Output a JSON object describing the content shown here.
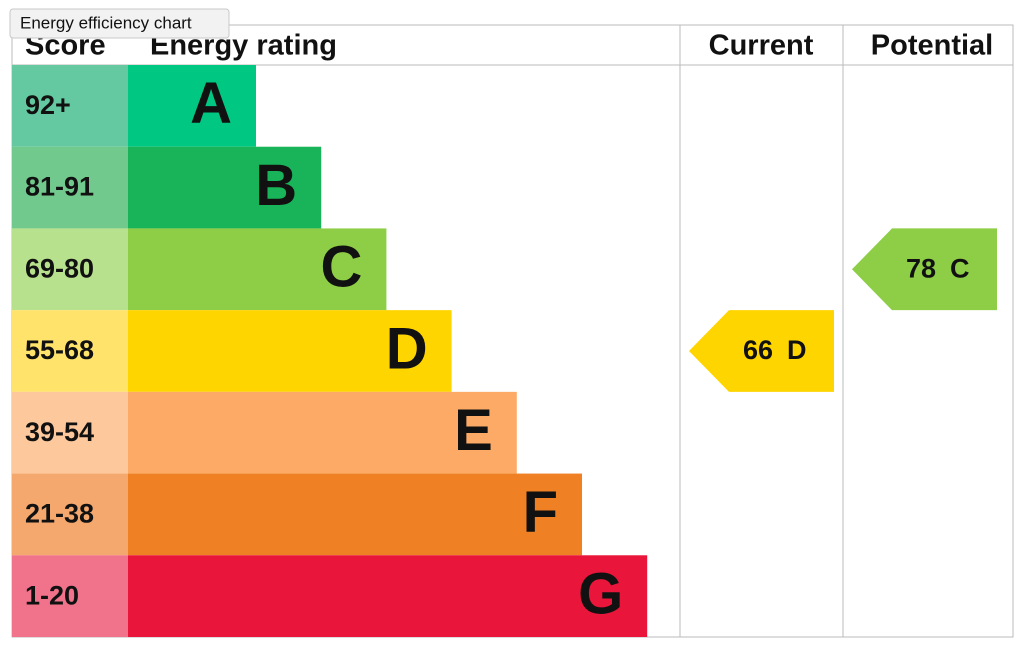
{
  "tooltip": "Energy efficiency chart",
  "headers": {
    "score": "Score",
    "rating": "Energy rating",
    "current": "Current",
    "potential": "Potential"
  },
  "bands": [
    {
      "score": "92+",
      "letter": "A",
      "color": "#00c781",
      "score_color": "#64c9a0"
    },
    {
      "score": "81-91",
      "letter": "B",
      "color": "#19b459",
      "score_color": "#72c98d"
    },
    {
      "score": "69-80",
      "letter": "C",
      "color": "#8dce46",
      "score_color": "#b8e18d"
    },
    {
      "score": "55-68",
      "letter": "D",
      "color": "#ffd500",
      "score_color": "#ffe36b"
    },
    {
      "score": "39-54",
      "letter": "E",
      "color": "#fcaa65",
      "score_color": "#fdc89c"
    },
    {
      "score": "21-38",
      "letter": "F",
      "color": "#ef8023",
      "score_color": "#f4a86e"
    },
    {
      "score": "1-20",
      "letter": "G",
      "color": "#e9153b",
      "score_color": "#f1728b"
    }
  ],
  "current": {
    "value": 66,
    "letter": "D"
  },
  "potential": {
    "value": 78,
    "letter": "C"
  }
}
